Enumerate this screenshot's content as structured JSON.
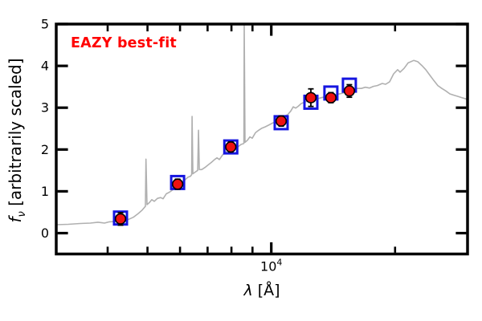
{
  "chart_data": {
    "type": "line+scatter",
    "annotation": {
      "text": "EAZY best-fit",
      "color": "#ff0000"
    },
    "xlabel": {
      "variable": "λ",
      "unit": " [Å]"
    },
    "ylabel": {
      "variable": "f",
      "subscript": "ν",
      "rest": " [arbitrarily scaled]"
    },
    "xscale": "log",
    "xlim": [
      3000,
      30000
    ],
    "ylim": [
      -0.5,
      5
    ],
    "grid": false,
    "x_major_ticks": [
      {
        "value": 10000,
        "label_base": "10",
        "label_exp": "4"
      }
    ],
    "x_minor_ticks": [
      3000,
      4000,
      5000,
      6000,
      7000,
      8000,
      9000,
      20000,
      30000
    ],
    "y_ticks": [
      {
        "value": 0,
        "label": "0"
      },
      {
        "value": 1,
        "label": "1"
      },
      {
        "value": 2,
        "label": "2"
      },
      {
        "value": 3,
        "label": "3"
      },
      {
        "value": 4,
        "label": "4"
      },
      {
        "value": 5,
        "label": "5"
      }
    ],
    "axis_color": "#000000",
    "series": [
      {
        "name": "eazy-template-spectrum",
        "type": "line",
        "color": "#b0b0b0",
        "points": [
          [
            3000,
            0.2
          ],
          [
            3210,
            0.21
          ],
          [
            3430,
            0.23
          ],
          [
            3630,
            0.24
          ],
          [
            3790,
            0.26
          ],
          [
            3930,
            0.24
          ],
          [
            4040,
            0.27
          ],
          [
            4180,
            0.28
          ],
          [
            4300,
            0.31
          ],
          [
            4400,
            0.3
          ],
          [
            4500,
            0.33
          ],
          [
            4620,
            0.38
          ],
          [
            4750,
            0.47
          ],
          [
            4855,
            0.55
          ],
          [
            4920,
            0.62
          ],
          [
            4942,
            0.64
          ],
          [
            4958,
            1.77
          ],
          [
            4986,
            0.68
          ],
          [
            5055,
            0.73
          ],
          [
            5123,
            0.8
          ],
          [
            5193,
            0.76
          ],
          [
            5287,
            0.83
          ],
          [
            5383,
            0.85
          ],
          [
            5457,
            0.82
          ],
          [
            5556,
            0.94
          ],
          [
            5657,
            0.98
          ],
          [
            5733,
            1.02
          ],
          [
            5838,
            1.08
          ],
          [
            5944,
            1.13
          ],
          [
            6052,
            1.22
          ],
          [
            6162,
            1.27
          ],
          [
            6275,
            1.34
          ],
          [
            6360,
            1.36
          ],
          [
            6403,
            1.4
          ],
          [
            6418,
            2.79
          ],
          [
            6447,
            1.42
          ],
          [
            6534,
            1.46
          ],
          [
            6623,
            1.5
          ],
          [
            6653,
            2.46
          ],
          [
            6683,
            1.52
          ],
          [
            6774,
            1.52
          ],
          [
            6897,
            1.57
          ],
          [
            7022,
            1.63
          ],
          [
            7150,
            1.69
          ],
          [
            7280,
            1.76
          ],
          [
            7378,
            1.8
          ],
          [
            7478,
            1.76
          ],
          [
            7614,
            1.87
          ],
          [
            7751,
            1.94
          ],
          [
            7892,
            1.99
          ],
          [
            8035,
            2.04
          ],
          [
            8180,
            2.09
          ],
          [
            8291,
            2.06
          ],
          [
            8441,
            2.12
          ],
          [
            8556,
            2.14
          ],
          [
            8576,
            2.15
          ],
          [
            8594,
            5.0
          ],
          [
            8633,
            2.17
          ],
          [
            8750,
            2.22
          ],
          [
            8869,
            2.3
          ],
          [
            8990,
            2.27
          ],
          [
            9152,
            2.4
          ],
          [
            9318,
            2.46
          ],
          [
            9487,
            2.51
          ],
          [
            9659,
            2.54
          ],
          [
            9834,
            2.58
          ],
          [
            10012,
            2.62
          ],
          [
            10194,
            2.66
          ],
          [
            10380,
            2.71
          ],
          [
            10568,
            2.77
          ],
          [
            10760,
            2.8
          ],
          [
            10955,
            2.83
          ],
          [
            11154,
            2.92
          ],
          [
            11306,
            3.02
          ],
          [
            11458,
            2.99
          ],
          [
            11615,
            3.03
          ],
          [
            11825,
            3.1
          ],
          [
            12040,
            3.13
          ],
          [
            12258,
            3.16
          ],
          [
            12480,
            3.17
          ],
          [
            12709,
            3.19
          ],
          [
            12939,
            3.21
          ],
          [
            13232,
            3.24
          ],
          [
            13533,
            3.26
          ],
          [
            13840,
            3.29
          ],
          [
            14153,
            3.3
          ],
          [
            14474,
            3.32
          ],
          [
            14803,
            3.34
          ],
          [
            15137,
            3.37
          ],
          [
            15481,
            3.41
          ],
          [
            15833,
            3.43
          ],
          [
            16189,
            3.46
          ],
          [
            16557,
            3.46
          ],
          [
            16933,
            3.49
          ],
          [
            17314,
            3.47
          ],
          [
            17708,
            3.51
          ],
          [
            18105,
            3.53
          ],
          [
            18609,
            3.58
          ],
          [
            18966,
            3.56
          ],
          [
            19396,
            3.62
          ],
          [
            19838,
            3.81
          ],
          [
            20289,
            3.91
          ],
          [
            20564,
            3.85
          ],
          [
            21034,
            3.94
          ],
          [
            21512,
            4.07
          ],
          [
            22195,
            4.13
          ],
          [
            22705,
            4.1
          ],
          [
            23225,
            4.01
          ],
          [
            23748,
            3.91
          ],
          [
            24289,
            3.78
          ],
          [
            24839,
            3.65
          ],
          [
            25400,
            3.53
          ],
          [
            25979,
            3.46
          ],
          [
            26571,
            3.4
          ],
          [
            27172,
            3.33
          ],
          [
            27792,
            3.3
          ],
          [
            28426,
            3.27
          ],
          [
            29068,
            3.24
          ],
          [
            29731,
            3.21
          ],
          [
            30000,
            3.18
          ]
        ]
      },
      {
        "name": "template-photometry-square",
        "type": "square",
        "color": "#1515e0",
        "points": [
          [
            4300,
            0.36
          ],
          [
            5920,
            1.21
          ],
          [
            7970,
            2.06
          ],
          [
            10570,
            2.64
          ],
          [
            12480,
            3.13
          ],
          [
            13960,
            3.35
          ],
          [
            15480,
            3.54
          ]
        ]
      },
      {
        "name": "observed-photometry-point",
        "type": "circle",
        "color": "#ee1111",
        "edge_color": "#000000",
        "points": [
          [
            4300,
            0.34
          ],
          [
            5920,
            1.17
          ],
          [
            7970,
            2.06
          ],
          [
            10570,
            2.68
          ],
          [
            12480,
            3.24
          ],
          [
            13960,
            3.24
          ],
          [
            15480,
            3.4
          ]
        ],
        "yerr": [
          0.15,
          0.12,
          0.12,
          0.12,
          0.21,
          0.12,
          0.15
        ]
      }
    ]
  }
}
